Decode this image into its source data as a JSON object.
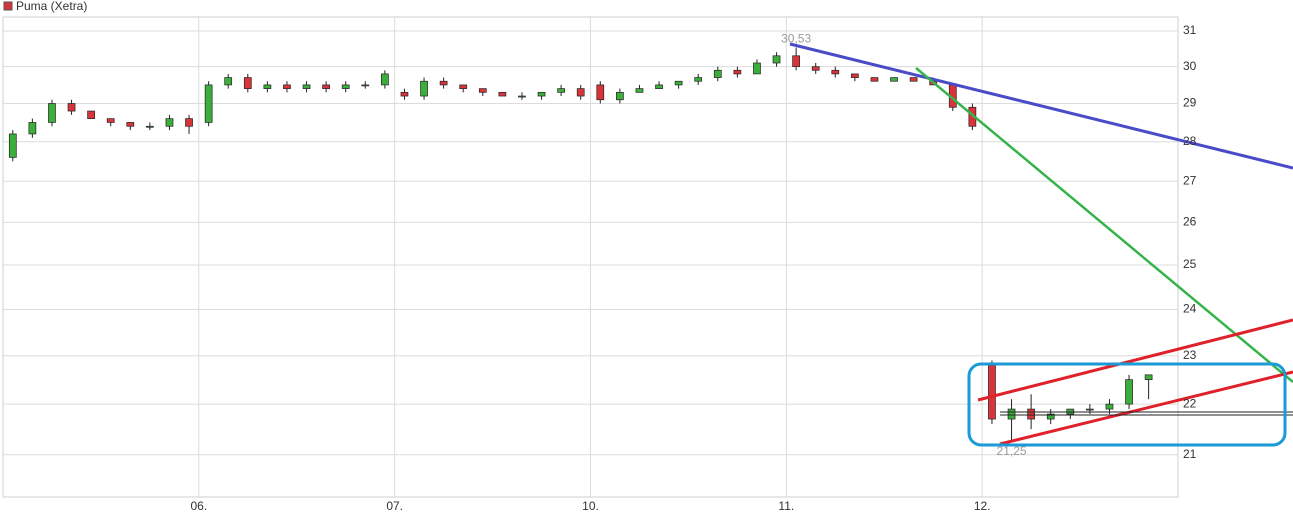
{
  "chart_data": {
    "type": "candlestick",
    "log_scale": true,
    "grid": true,
    "legend": "top-left",
    "series": [
      {
        "name": "Puma (Xetra)",
        "color": "#d9343a",
        "up_color": "#3cae3c",
        "down_color": "#d9343a",
        "open": [
          27.6,
          28.2,
          28.5,
          29.0,
          28.8,
          28.6,
          28.5,
          28.4,
          28.4,
          28.6,
          28.5,
          29.5,
          29.7,
          29.4,
          29.5,
          29.4,
          29.5,
          29.4,
          29.5,
          29.5,
          29.3,
          29.2,
          29.6,
          29.5,
          29.4,
          29.3,
          29.2,
          29.2,
          29.3,
          29.4,
          29.5,
          29.1,
          29.3,
          29.4,
          29.5,
          29.6,
          29.7,
          29.9,
          29.8,
          30.1,
          30.3,
          30.0,
          29.9,
          29.8,
          29.7,
          29.6,
          29.7,
          29.6,
          29.5,
          28.9,
          22.8,
          21.7,
          21.9,
          21.7,
          21.8,
          21.9,
          21.9,
          22.0,
          22.5
        ],
        "high": [
          28.3,
          28.6,
          29.1,
          29.1,
          28.8,
          28.6,
          28.5,
          28.5,
          28.7,
          28.7,
          29.6,
          29.8,
          29.8,
          29.6,
          29.6,
          29.6,
          29.6,
          29.6,
          29.6,
          29.9,
          29.4,
          29.7,
          29.7,
          29.5,
          29.4,
          29.3,
          29.3,
          29.3,
          29.5,
          29.5,
          29.6,
          29.4,
          29.5,
          29.6,
          29.6,
          29.8,
          30.0,
          30.0,
          30.2,
          30.4,
          30.53,
          30.1,
          30.0,
          29.8,
          29.7,
          29.7,
          29.7,
          29.7,
          29.5,
          29.0,
          22.9,
          22.1,
          22.2,
          21.9,
          21.9,
          22.0,
          22.1,
          22.6,
          22.6
        ],
        "low": [
          27.5,
          28.1,
          28.4,
          28.7,
          28.6,
          28.4,
          28.3,
          28.3,
          28.3,
          28.2,
          28.4,
          29.4,
          29.3,
          29.3,
          29.3,
          29.3,
          29.3,
          29.3,
          29.4,
          29.4,
          29.1,
          29.1,
          29.4,
          29.3,
          29.2,
          29.2,
          29.1,
          29.1,
          29.2,
          29.1,
          29.0,
          29.0,
          29.3,
          29.4,
          29.4,
          29.5,
          29.6,
          29.7,
          29.8,
          30.0,
          29.9,
          29.8,
          29.7,
          29.6,
          29.6,
          29.6,
          29.6,
          29.5,
          28.8,
          28.3,
          21.6,
          21.25,
          21.5,
          21.6,
          21.7,
          21.8,
          21.8,
          21.9,
          22.1
        ],
        "close": [
          28.2,
          28.5,
          29.0,
          28.8,
          28.6,
          28.5,
          28.4,
          28.4,
          28.6,
          28.4,
          29.5,
          29.7,
          29.4,
          29.5,
          29.4,
          29.5,
          29.4,
          29.5,
          29.5,
          29.8,
          29.2,
          29.6,
          29.5,
          29.4,
          29.3,
          29.2,
          29.2,
          29.3,
          29.4,
          29.2,
          29.1,
          29.3,
          29.4,
          29.5,
          29.6,
          29.7,
          29.9,
          29.8,
          30.1,
          30.3,
          30.0,
          29.9,
          29.8,
          29.7,
          29.6,
          29.7,
          29.6,
          29.5,
          28.9,
          28.4,
          21.7,
          21.9,
          21.7,
          21.8,
          21.9,
          21.9,
          22.0,
          22.5,
          22.6
        ]
      }
    ],
    "categories": [
      null,
      null,
      null,
      null,
      null,
      null,
      null,
      null,
      null,
      null,
      "06.",
      null,
      null,
      null,
      null,
      null,
      null,
      null,
      null,
      null,
      "07.",
      null,
      null,
      null,
      null,
      null,
      null,
      null,
      null,
      null,
      "10.",
      null,
      null,
      null,
      null,
      null,
      null,
      null,
      null,
      null,
      "11.",
      null,
      null,
      null,
      null,
      null,
      null,
      null,
      null,
      null,
      "12.",
      null,
      null,
      null,
      null,
      null,
      null,
      null,
      null
    ],
    "ylim": [
      20.2,
      31.4
    ],
    "yticks": [
      21,
      22,
      23,
      24,
      25,
      26,
      27,
      28,
      29,
      30,
      31
    ],
    "annotations": [
      {
        "value": 30.53,
        "label": "30,53"
      },
      {
        "value": 21.25,
        "label": "21,25"
      }
    ]
  }
}
